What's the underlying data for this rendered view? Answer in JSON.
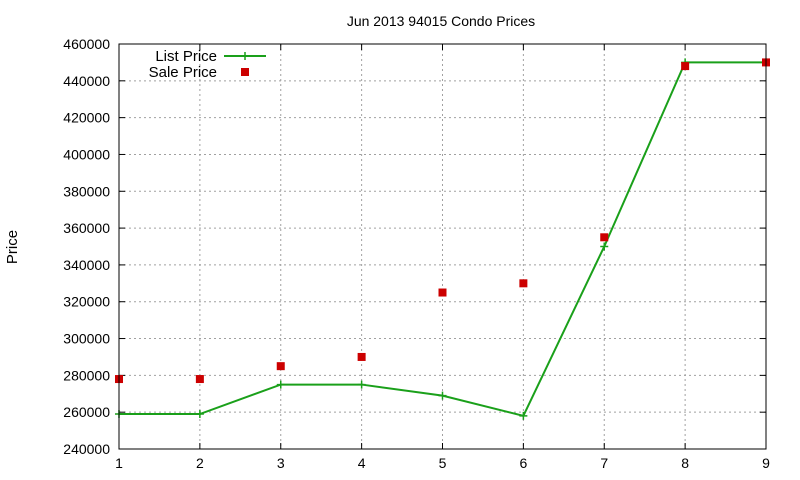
{
  "chart_data": {
    "type": "line",
    "title": "Jun 2013 94015 Condo Prices",
    "xlabel": "",
    "ylabel": "Price",
    "xlim": [
      1,
      9
    ],
    "ylim": [
      240000,
      460000
    ],
    "xticks": [
      1,
      2,
      3,
      4,
      5,
      6,
      7,
      8,
      9
    ],
    "yticks": [
      240000,
      260000,
      280000,
      300000,
      320000,
      340000,
      360000,
      380000,
      400000,
      420000,
      440000,
      460000
    ],
    "grid": true,
    "legend_position": "top-left",
    "series": [
      {
        "name": "List Price",
        "style": "line-with-plus-markers",
        "color": "#1aa01a",
        "x": [
          1,
          2,
          3,
          4,
          5,
          6,
          7,
          8,
          9
        ],
        "y": [
          259000,
          259000,
          275000,
          275000,
          269000,
          258000,
          350000,
          450000,
          450000
        ]
      },
      {
        "name": "Sale Price",
        "style": "square-points",
        "color": "#cc0000",
        "x": [
          1,
          2,
          3,
          4,
          5,
          6,
          7,
          8,
          9
        ],
        "y": [
          278000,
          278000,
          285000,
          290000,
          325000,
          330000,
          355000,
          448000,
          450000
        ]
      }
    ]
  }
}
